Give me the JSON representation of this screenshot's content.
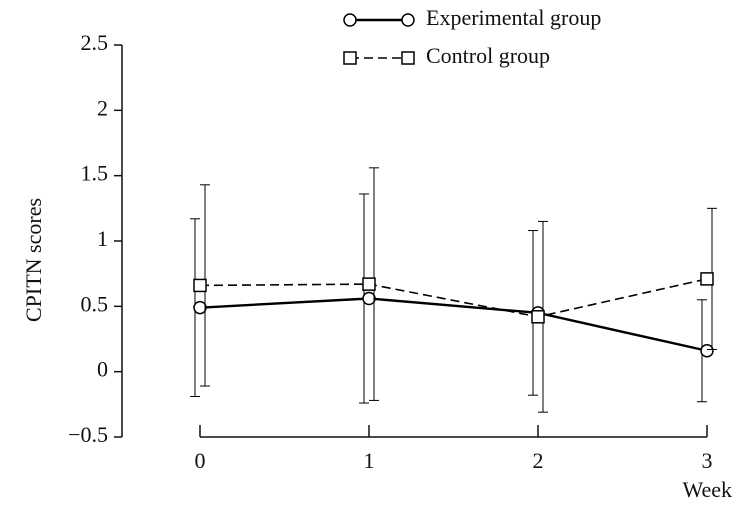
{
  "chart_data": {
    "type": "line",
    "ylabel": "CPITN scores",
    "xlabel": "Week",
    "x": [
      0,
      1,
      2,
      3
    ],
    "xlim": [
      0,
      3
    ],
    "xticks": [
      0,
      1,
      2,
      3
    ],
    "ylim": [
      -0.5,
      2.5
    ],
    "yticks": [
      {
        "value": -0.5,
        "label": "−0.5"
      },
      0,
      0.5,
      1,
      1.5,
      2,
      2.5
    ],
    "legend": "upper right",
    "series": [
      {
        "name": "Experimental group",
        "color": "#000000",
        "marker": "circle",
        "dash": "solid",
        "values": [
          0.49,
          0.56,
          0.45,
          0.16
        ],
        "errors": [
          0.68,
          0.8,
          0.63,
          0.39
        ]
      },
      {
        "name": "Control group",
        "color": "#000000",
        "marker": "square",
        "dash": "dashed",
        "values": [
          0.66,
          0.67,
          0.42,
          0.71
        ],
        "errors": [
          0.77,
          0.89,
          0.73,
          0.54
        ]
      }
    ]
  }
}
